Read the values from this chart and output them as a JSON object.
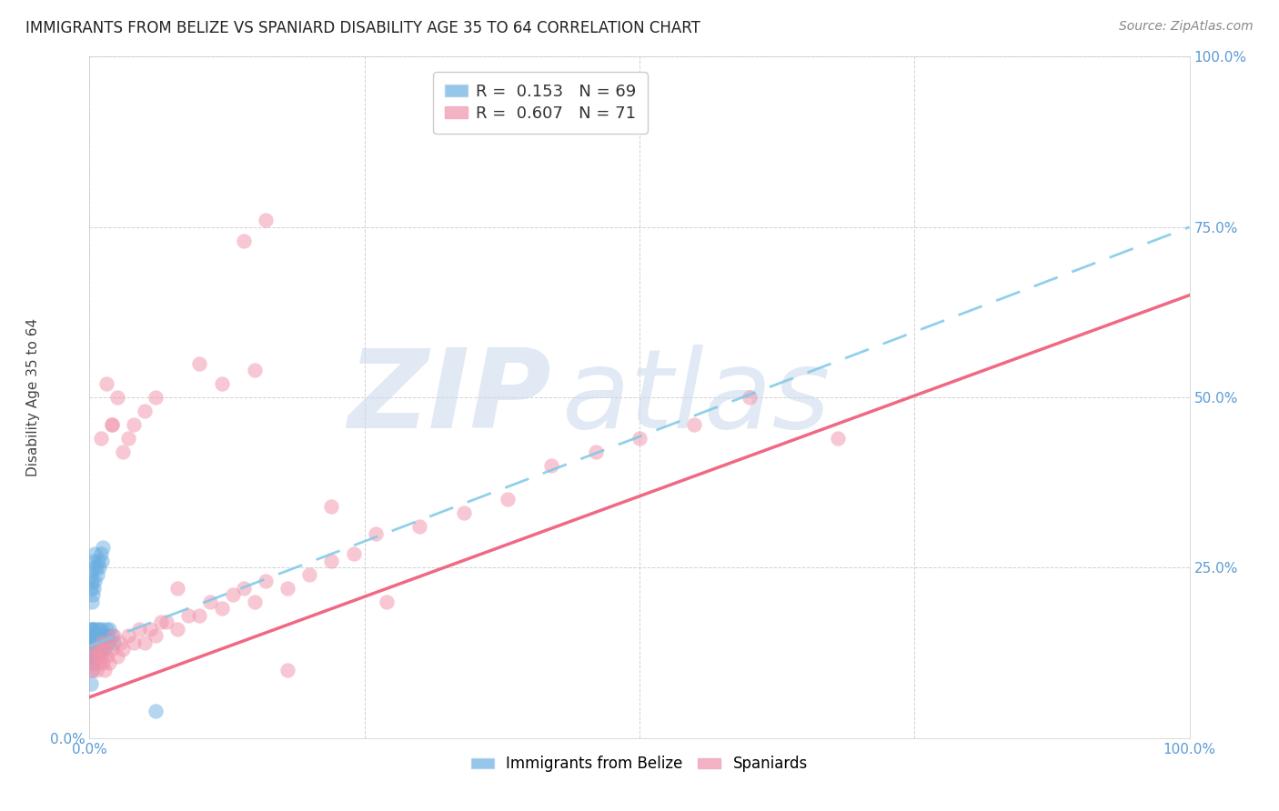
{
  "title": "IMMIGRANTS FROM BELIZE VS SPANIARD DISABILITY AGE 35 TO 64 CORRELATION CHART",
  "source": "Source: ZipAtlas.com",
  "ylabel": "Disability Age 35 to 64",
  "xlim": [
    0,
    1.0
  ],
  "ylim": [
    0,
    1.0
  ],
  "legend_entries": [
    {
      "label": "R =  0.153   N = 69",
      "color": "#7eb6e8"
    },
    {
      "label": "R =  0.607   N = 71",
      "color": "#f4a0b8"
    }
  ],
  "legend_bottom": [
    "Immigrants from Belize",
    "Spaniards"
  ],
  "belize_color": "#6aaee0",
  "spaniard_color": "#f093ab",
  "belize_line_color": "#7ec8e8",
  "spaniard_line_color": "#f05878",
  "watermark_top": "ZIP",
  "watermark_bot": "atlas",
  "watermark_color": "#c8d8ec",
  "belize_R": 0.153,
  "spaniard_R": 0.607,
  "belize_N": 69,
  "spaniard_N": 71,
  "belize_x": [
    0.001,
    0.001,
    0.001,
    0.001,
    0.001,
    0.002,
    0.002,
    0.002,
    0.002,
    0.002,
    0.002,
    0.002,
    0.002,
    0.003,
    0.003,
    0.003,
    0.003,
    0.003,
    0.003,
    0.004,
    0.004,
    0.004,
    0.004,
    0.004,
    0.005,
    0.005,
    0.005,
    0.005,
    0.006,
    0.006,
    0.006,
    0.007,
    0.007,
    0.007,
    0.008,
    0.008,
    0.009,
    0.009,
    0.01,
    0.01,
    0.011,
    0.012,
    0.013,
    0.014,
    0.015,
    0.016,
    0.017,
    0.018,
    0.02,
    0.022,
    0.001,
    0.001,
    0.002,
    0.002,
    0.003,
    0.003,
    0.004,
    0.004,
    0.005,
    0.005,
    0.006,
    0.007,
    0.008,
    0.009,
    0.01,
    0.011,
    0.012,
    0.06,
    0.001
  ],
  "belize_y": [
    0.12,
    0.14,
    0.15,
    0.13,
    0.16,
    0.1,
    0.11,
    0.13,
    0.14,
    0.15,
    0.12,
    0.16,
    0.13,
    0.11,
    0.12,
    0.14,
    0.15,
    0.13,
    0.16,
    0.12,
    0.13,
    0.14,
    0.15,
    0.16,
    0.12,
    0.13,
    0.14,
    0.15,
    0.12,
    0.14,
    0.15,
    0.13,
    0.14,
    0.16,
    0.13,
    0.15,
    0.14,
    0.16,
    0.13,
    0.15,
    0.16,
    0.14,
    0.15,
    0.13,
    0.16,
    0.15,
    0.14,
    0.16,
    0.15,
    0.14,
    0.22,
    0.24,
    0.2,
    0.23,
    0.21,
    0.25,
    0.22,
    0.26,
    0.23,
    0.27,
    0.25,
    0.24,
    0.26,
    0.25,
    0.27,
    0.26,
    0.28,
    0.04,
    0.08
  ],
  "spaniard_x": [
    0.002,
    0.003,
    0.004,
    0.005,
    0.006,
    0.007,
    0.008,
    0.009,
    0.01,
    0.011,
    0.012,
    0.013,
    0.014,
    0.015,
    0.016,
    0.018,
    0.02,
    0.022,
    0.025,
    0.028,
    0.03,
    0.035,
    0.04,
    0.045,
    0.05,
    0.055,
    0.06,
    0.065,
    0.07,
    0.08,
    0.09,
    0.1,
    0.11,
    0.12,
    0.13,
    0.14,
    0.15,
    0.16,
    0.18,
    0.2,
    0.22,
    0.24,
    0.26,
    0.3,
    0.34,
    0.38,
    0.42,
    0.46,
    0.5,
    0.55,
    0.01,
    0.015,
    0.02,
    0.025,
    0.03,
    0.035,
    0.04,
    0.05,
    0.06,
    0.08,
    0.1,
    0.12,
    0.15,
    0.18,
    0.22,
    0.27,
    0.6,
    0.68,
    0.14,
    0.16,
    0.02
  ],
  "spaniard_y": [
    0.1,
    0.11,
    0.12,
    0.13,
    0.1,
    0.12,
    0.13,
    0.11,
    0.12,
    0.14,
    0.11,
    0.13,
    0.1,
    0.12,
    0.14,
    0.11,
    0.13,
    0.15,
    0.12,
    0.14,
    0.13,
    0.15,
    0.14,
    0.16,
    0.14,
    0.16,
    0.15,
    0.17,
    0.17,
    0.16,
    0.18,
    0.18,
    0.2,
    0.19,
    0.21,
    0.22,
    0.2,
    0.23,
    0.22,
    0.24,
    0.26,
    0.27,
    0.3,
    0.31,
    0.33,
    0.35,
    0.4,
    0.42,
    0.44,
    0.46,
    0.44,
    0.52,
    0.46,
    0.5,
    0.42,
    0.44,
    0.46,
    0.48,
    0.5,
    0.22,
    0.55,
    0.52,
    0.54,
    0.1,
    0.34,
    0.2,
    0.5,
    0.44,
    0.73,
    0.76,
    0.46
  ],
  "grid_color": "#cccccc",
  "tick_color": "#5b9bd5",
  "background_color": "#ffffff",
  "title_fontsize": 12,
  "axis_label_fontsize": 11,
  "tick_fontsize": 11,
  "belize_line_x0": 0.0,
  "belize_line_x1": 1.0,
  "belize_line_y0": 0.135,
  "belize_line_y1": 0.75,
  "spaniard_line_x0": 0.0,
  "spaniard_line_x1": 1.0,
  "spaniard_line_y0": 0.06,
  "spaniard_line_y1": 0.65
}
